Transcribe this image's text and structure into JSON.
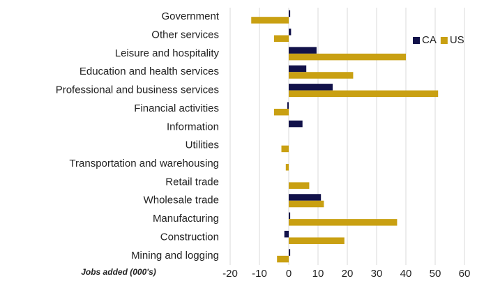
{
  "chart_data": {
    "type": "barh",
    "xlabel": "Jobs added (000's)",
    "categories": [
      "Government",
      "Other services",
      "Leisure and hospitality",
      "Education and health services",
      "Professional and business services",
      "Financial activities",
      "Information",
      "Utilities",
      "Transportation and warehousing",
      "Retail trade",
      "Wholesale trade",
      "Manufacturing",
      "Construction",
      "Mining and logging"
    ],
    "series": [
      {
        "name": "CA",
        "color": "#12124a",
        "values": [
          0.5,
          0.8,
          9.5,
          6,
          15,
          -0.5,
          4.7,
          0,
          0,
          0,
          11,
          0.5,
          -1.5,
          0.5
        ]
      },
      {
        "name": "US",
        "color": "#c9a012",
        "values": [
          -12.8,
          -5,
          40,
          22,
          51,
          -5,
          0,
          -2.5,
          -1,
          7,
          12,
          37,
          19,
          -4
        ]
      }
    ],
    "xlim": [
      -20,
      60
    ],
    "xticks": [
      -20,
      -10,
      0,
      10,
      20,
      30,
      40,
      50,
      60
    ],
    "grid": true,
    "legend": "upper right"
  }
}
